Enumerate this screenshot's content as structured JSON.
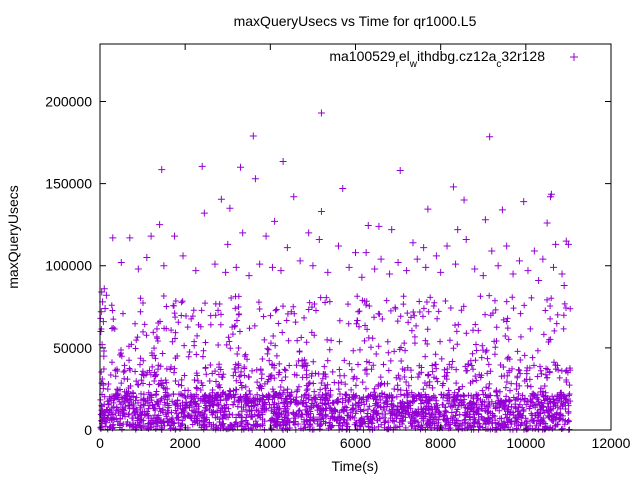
{
  "chart_data": {
    "type": "scatter",
    "title": "maxQueryUsecs vs Time for qr1000.L5",
    "xlabel": "Time(s)",
    "ylabel": "maxQueryUsecs",
    "xlim": [
      0,
      12000
    ],
    "ylim": [
      0,
      235000
    ],
    "x_ticks": [
      0,
      2000,
      4000,
      6000,
      8000,
      10000,
      12000
    ],
    "y_ticks": [
      0,
      50000,
      100000,
      150000,
      200000
    ],
    "x_tick_labels": [
      "0",
      "2000",
      "4000",
      "6000",
      "8000",
      "10000",
      "12000"
    ],
    "y_tick_labels": [
      "0",
      "50000",
      "100000",
      "150000",
      "200000"
    ],
    "legend": "top-right",
    "grid": false,
    "marker": "+",
    "series": [
      {
        "name": "ma100529_rel_withdbg.cz12a_c32r128",
        "color": "#9400d3",
        "points": [
          [
            5200,
            193000
          ],
          [
            3600,
            179000
          ],
          [
            9150,
            178500
          ],
          [
            4300,
            163500
          ],
          [
            2400,
            160500
          ],
          [
            3300,
            160000
          ],
          [
            1450,
            158500
          ],
          [
            7050,
            158000
          ],
          [
            3650,
            153000
          ],
          [
            8300,
            148000
          ],
          [
            5700,
            147000
          ],
          [
            10600,
            143500
          ],
          [
            10580,
            142000
          ],
          [
            4550,
            142000
          ],
          [
            8550,
            140000
          ],
          [
            2850,
            140500
          ],
          [
            9950,
            139000
          ],
          [
            3050,
            135000
          ],
          [
            7700,
            134500
          ],
          [
            9450,
            134000
          ],
          [
            5200,
            133000
          ],
          [
            2450,
            132000
          ],
          [
            10500,
            126000
          ],
          [
            1400,
            125000
          ],
          [
            6300,
            124500
          ],
          [
            6550,
            124000
          ],
          [
            8400,
            122000
          ],
          [
            6850,
            122000
          ],
          [
            9050,
            128000
          ],
          [
            4100,
            127000
          ],
          [
            4900,
            120000
          ],
          [
            5150,
            116000
          ],
          [
            7350,
            114000
          ],
          [
            7600,
            111000
          ],
          [
            10950,
            115000
          ],
          [
            11000,
            113000
          ],
          [
            1750,
            118000
          ],
          [
            1200,
            118000
          ],
          [
            700,
            117000
          ],
          [
            300,
            117000
          ],
          [
            3000,
            113000
          ],
          [
            3350,
            120000
          ],
          [
            3900,
            118000
          ],
          [
            4400,
            111000
          ],
          [
            5600,
            112000
          ],
          [
            6000,
            108000
          ],
          [
            6250,
            108000
          ],
          [
            6600,
            104000
          ],
          [
            7000,
            102000
          ],
          [
            7450,
            104000
          ],
          [
            7900,
            106000
          ],
          [
            8150,
            112000
          ],
          [
            8600,
            116000
          ],
          [
            9200,
            109000
          ],
          [
            9550,
            112000
          ],
          [
            9850,
            103000
          ],
          [
            10200,
            109000
          ],
          [
            10400,
            104000
          ],
          [
            10700,
            113000
          ],
          [
            10850,
            95000
          ],
          [
            500,
            102000
          ],
          [
            900,
            98000
          ],
          [
            1100,
            105000
          ],
          [
            1500,
            100000
          ],
          [
            1950,
            106000
          ],
          [
            2250,
            97000
          ],
          [
            2700,
            101000
          ],
          [
            2950,
            96000
          ],
          [
            3200,
            99000
          ],
          [
            3500,
            94000
          ],
          [
            3750,
            101000
          ],
          [
            4050,
            99000
          ],
          [
            4250,
            97000
          ],
          [
            4700,
            103000
          ],
          [
            5000,
            100000
          ],
          [
            5350,
            96000
          ],
          [
            5850,
            99000
          ],
          [
            6150,
            93000
          ],
          [
            6450,
            98000
          ],
          [
            6800,
            95000
          ],
          [
            7200,
            97000
          ],
          [
            7650,
            99000
          ],
          [
            8000,
            96000
          ],
          [
            8350,
            101000
          ],
          [
            8800,
            98000
          ],
          [
            9000,
            94000
          ],
          [
            9350,
            100000
          ],
          [
            9700,
            95000
          ],
          [
            10050,
            97000
          ],
          [
            10300,
            91000
          ],
          [
            10650,
            99000
          ],
          [
            10900,
            88000
          ],
          [
            100,
            86000
          ],
          [
            150,
            82000
          ],
          [
            60,
            78000
          ],
          [
            30,
            72000
          ],
          [
            80,
            66000
          ],
          [
            40,
            84000
          ],
          [
            120,
            74000
          ],
          [
            20,
            60000
          ],
          [
            50,
            52000
          ],
          [
            90,
            45000
          ]
        ]
      }
    ]
  }
}
